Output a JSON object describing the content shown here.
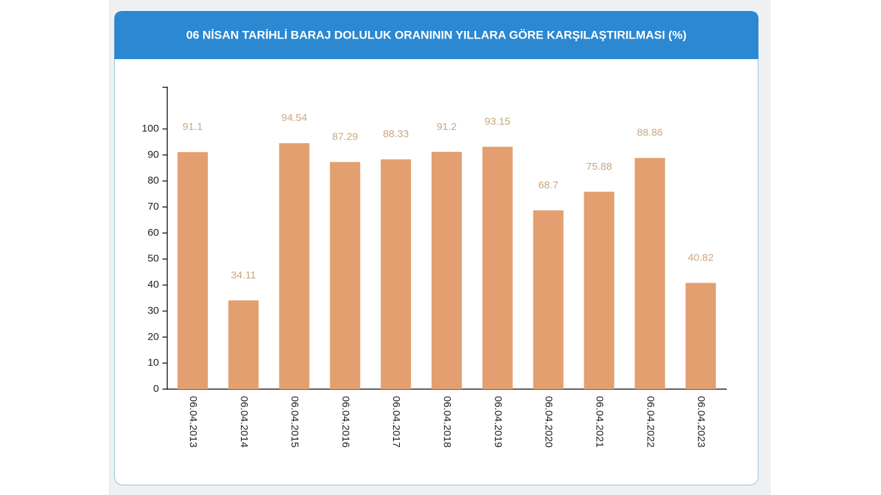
{
  "chart_data": {
    "type": "bar",
    "title": "06 NİSAN TARİHLİ BARAJ DOLULUK ORANININ YILLARA GÖRE KARŞILAŞTIRILMASI (%)",
    "categories": [
      "06.04.2013",
      "06.04.2014",
      "06.04.2015",
      "06.04.2016",
      "06.04.2017",
      "06.04.2018",
      "06.04.2019",
      "06.04.2020",
      "06.04.2021",
      "06.04.2022",
      "06.04.2023"
    ],
    "values": [
      91.1,
      34.11,
      94.54,
      87.29,
      88.33,
      91.2,
      93.15,
      68.7,
      75.88,
      88.86,
      40.82
    ],
    "color": "#e39f70",
    "ylim": [
      0,
      116
    ],
    "yticks": [
      0,
      10,
      20,
      30,
      40,
      50,
      60,
      70,
      80,
      90,
      100
    ],
    "grid": false
  }
}
